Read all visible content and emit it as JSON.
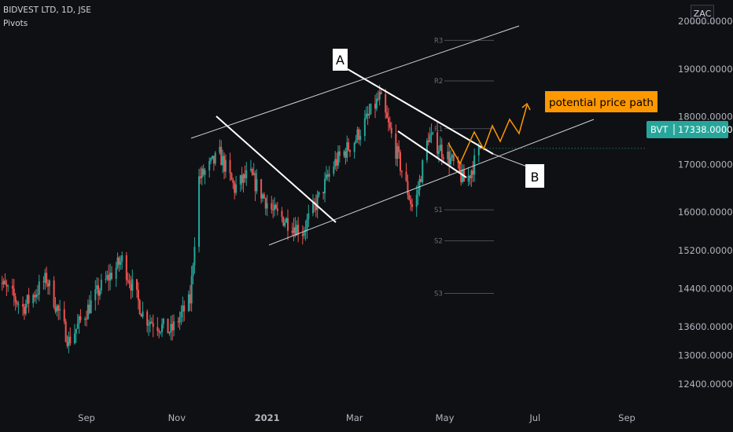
{
  "header": {
    "symbol_line": "BIDVEST LTD, 1D, JSE",
    "indicator": "Pivots"
  },
  "brand_badge": "ZAC",
  "annotations": {
    "label_a": "A",
    "label_b": "B",
    "path_label": "potential price path"
  },
  "price_tag": {
    "symbol": "BVT",
    "price": "17338.0000",
    "color": "#26a69a"
  },
  "colors": {
    "up": "#26a69a",
    "down": "#ef5350",
    "accent": "#ff9800",
    "background": "#0f1014"
  },
  "chart_data": {
    "type": "candlestick",
    "title": "",
    "y_tick_labels": [
      "20000.0000",
      "19000.0000",
      "18000.0000",
      "17000.0000",
      "16000.0000",
      "15200.0000",
      "14400.0000",
      "13600.0000",
      "13000.0000",
      "12400.0000"
    ],
    "y_ticks": [
      20000,
      19000,
      18000,
      17000,
      16000,
      15200,
      14400,
      13600,
      13000,
      12400
    ],
    "x_tick_labels": [
      "Sep",
      "Nov",
      "2021",
      "Mar",
      "May",
      "Jul",
      "Sep"
    ],
    "x_ticks": [
      "2020-09-01",
      "2020-11-01",
      "2021-01-01",
      "2021-03-01",
      "2021-05-01",
      "2021-07-01",
      "2021-09-01"
    ],
    "x_range": [
      "2020-07-01",
      "2021-10-10"
    ],
    "last_price": 17338,
    "pivots": [
      {
        "label": "R3",
        "value": 19600
      },
      {
        "label": "R2",
        "value": 18750
      },
      {
        "label": "R1",
        "value": 17750
      },
      {
        "label": "S1",
        "value": 16050
      },
      {
        "label": "S2",
        "value": 15400
      },
      {
        "label": "S3",
        "value": 14300
      }
    ],
    "anchors": [
      [
        "2020-07-01",
        14650
      ],
      [
        "2020-07-20",
        14000
      ],
      [
        "2020-08-05",
        14600
      ],
      [
        "2020-08-20",
        13300
      ],
      [
        "2020-09-10",
        14400
      ],
      [
        "2020-09-25",
        15000
      ],
      [
        "2020-10-10",
        13800
      ],
      [
        "2020-10-28",
        13500
      ],
      [
        "2020-11-10",
        14150
      ],
      [
        "2020-11-16",
        16700
      ],
      [
        "2020-11-30",
        17200
      ],
      [
        "2020-12-10",
        16500
      ],
      [
        "2020-12-20",
        16800
      ],
      [
        "2021-01-05",
        16000
      ],
      [
        "2021-01-25",
        15600
      ],
      [
        "2021-02-05",
        16300
      ],
      [
        "2021-02-15",
        17000
      ],
      [
        "2021-03-01",
        17500
      ],
      [
        "2021-03-18",
        18400
      ],
      [
        "2021-03-30",
        17200
      ],
      [
        "2021-04-10",
        16000
      ],
      [
        "2021-04-20",
        17600
      ],
      [
        "2021-05-05",
        17100
      ],
      [
        "2021-05-15",
        16600
      ],
      [
        "2021-05-25",
        17338
      ]
    ]
  }
}
